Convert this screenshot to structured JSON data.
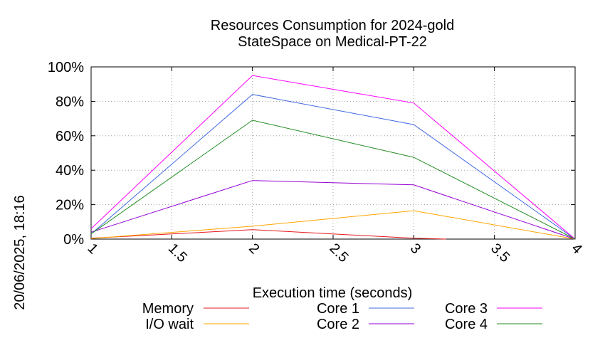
{
  "chart_data": {
    "type": "line",
    "title": "Resources Consumption for 2024-gold",
    "subtitle": "StateSpace on Medical-PT-22",
    "xlabel": "Execution time (seconds)",
    "ylabel": "",
    "timestamp": "20/06/2025, 18:16",
    "xlim": [
      1,
      4
    ],
    "ylim": [
      0,
      100
    ],
    "x_ticks": [
      1,
      1.5,
      2,
      2.5,
      3,
      3.5,
      4
    ],
    "x_tick_labels": [
      "1",
      "1.5",
      "2",
      "2.5",
      "3",
      "3.5",
      "4"
    ],
    "y_ticks": [
      0,
      20,
      40,
      60,
      80,
      100
    ],
    "y_tick_labels": [
      "0%",
      "20%",
      "40%",
      "60%",
      "80%",
      "100%"
    ],
    "grid": true,
    "legend_position": "bottom",
    "series": [
      {
        "name": "Memory",
        "color": "#e41a1c",
        "x": [
          1,
          2,
          3,
          3.2
        ],
        "y": [
          0.5,
          5.5,
          0.5,
          0
        ]
      },
      {
        "name": "I/O wait",
        "color": "#ffa500",
        "x": [
          1,
          2,
          3,
          4
        ],
        "y": [
          0.3,
          7.5,
          16.5,
          0
        ]
      },
      {
        "name": "Core 1",
        "color": "#4169e1",
        "x": [
          1,
          2,
          3,
          4
        ],
        "y": [
          3,
          84,
          66.5,
          0
        ]
      },
      {
        "name": "Core 2",
        "color": "#9400d3",
        "x": [
          1,
          2,
          3,
          4
        ],
        "y": [
          4,
          34,
          31.5,
          0
        ]
      },
      {
        "name": "Core 3",
        "color": "#ff00ff",
        "x": [
          1,
          2,
          3,
          4
        ],
        "y": [
          6,
          95,
          79,
          0
        ]
      },
      {
        "name": "Core 4",
        "color": "#228b22",
        "x": [
          1,
          2,
          3,
          4
        ],
        "y": [
          3,
          69,
          47.5,
          0
        ]
      }
    ]
  }
}
